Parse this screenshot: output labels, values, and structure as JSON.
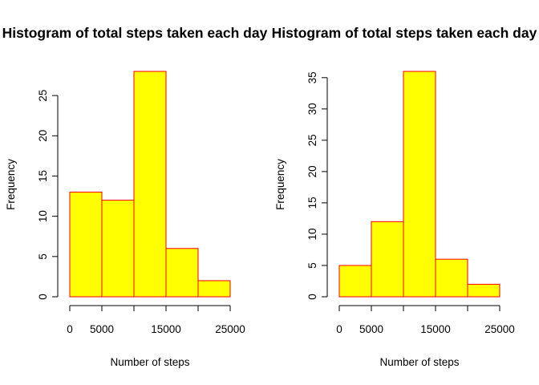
{
  "chart_data": [
    {
      "type": "bar",
      "title": "Histogram of total steps taken each day",
      "xlabel": "Number of steps",
      "ylabel": "Frequency",
      "bins": [
        [
          0,
          5000
        ],
        [
          5000,
          10000
        ],
        [
          10000,
          15000
        ],
        [
          15000,
          20000
        ],
        [
          20000,
          25000
        ]
      ],
      "values": [
        13,
        12,
        28,
        6,
        2
      ],
      "xlim": [
        0,
        25000
      ],
      "ylim": [
        0,
        28
      ],
      "xticks": [
        0,
        5000,
        10000,
        15000,
        20000,
        25000
      ],
      "xtick_labels": [
        "0",
        "5000",
        "",
        "15000",
        "",
        "25000"
      ],
      "yticks": [
        0,
        5,
        10,
        15,
        20,
        25
      ],
      "ytick_labels": [
        "0",
        "5",
        "10",
        "15",
        "20",
        "25"
      ],
      "colors": {
        "fill": "#FFFF00",
        "border": "#FF0000"
      }
    },
    {
      "type": "bar",
      "title": "Histogram of total steps taken each day",
      "xlabel": "Number of steps",
      "ylabel": "Frequency",
      "bins": [
        [
          0,
          5000
        ],
        [
          5000,
          10000
        ],
        [
          10000,
          15000
        ],
        [
          15000,
          20000
        ],
        [
          20000,
          25000
        ]
      ],
      "values": [
        5,
        12,
        36,
        6,
        2
      ],
      "xlim": [
        0,
        25000
      ],
      "ylim": [
        0,
        36
      ],
      "xticks": [
        0,
        5000,
        10000,
        15000,
        20000,
        25000
      ],
      "xtick_labels": [
        "0",
        "5000",
        "",
        "15000",
        "",
        "25000"
      ],
      "yticks": [
        0,
        5,
        10,
        15,
        20,
        25,
        30,
        35
      ],
      "ytick_labels": [
        "0",
        "5",
        "10",
        "15",
        "20",
        "25",
        "30",
        "35"
      ],
      "colors": {
        "fill": "#FFFF00",
        "border": "#FF0000"
      }
    }
  ]
}
